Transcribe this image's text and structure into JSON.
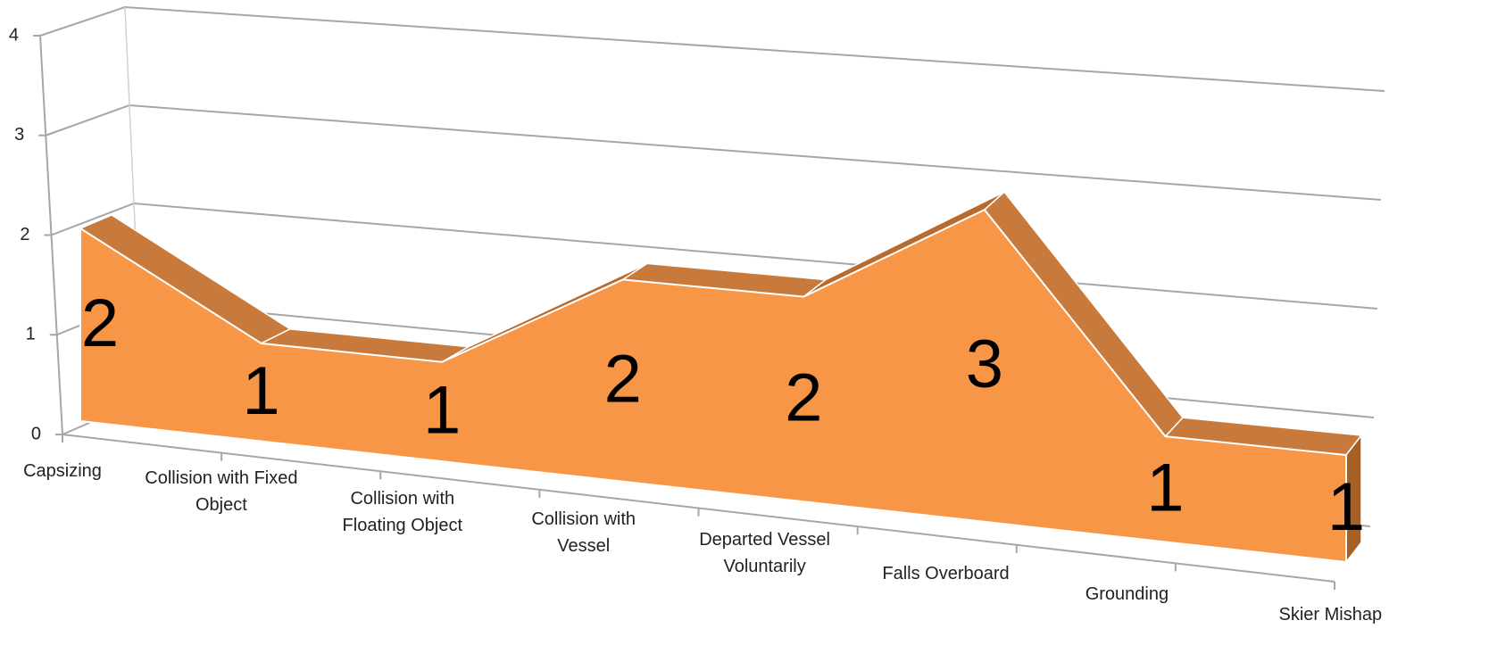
{
  "chart_data": {
    "type": "area",
    "categories": [
      "Capsizing",
      "Collision with Fixed Object",
      "Collision with Floating Object",
      "Collision with Vessel",
      "Departed Vessel Voluntarily",
      "Falls Overboard",
      "Grounding",
      "Skier Mishap"
    ],
    "values": [
      2,
      1,
      1,
      2,
      2,
      3,
      1,
      1
    ],
    "color": "#f79646",
    "ylim": [
      0,
      4
    ],
    "yticks": [
      0,
      1,
      2,
      3,
      4
    ],
    "grid": true
  }
}
